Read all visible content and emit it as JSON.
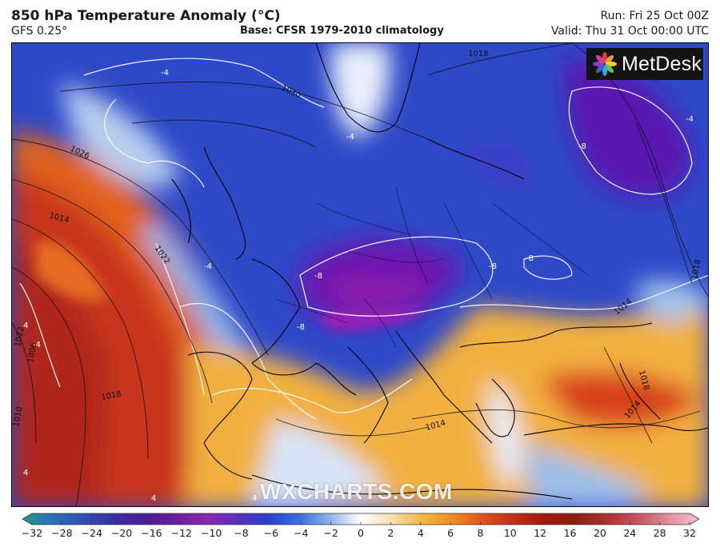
{
  "header": {
    "title": "850 hPa Temperature Anomaly (°C)",
    "model": "GFS 0.25°",
    "base": "Base: CFSR 1979-2010 climatology",
    "run": "Run: Fri 25 Oct 00Z",
    "valid": "Valid: Thu 31 Oct 00:00 UTC"
  },
  "branding": {
    "logo_text": "MetDesk",
    "watermark": "WXCHARTS.COM"
  },
  "map": {
    "isobar_labels": [
      "1018",
      "1026",
      "1030",
      "1014",
      "1022",
      "1010",
      "1006",
      "1018",
      "1014",
      "1018",
      "1018",
      "1014",
      "1014",
      "1022"
    ],
    "anomaly_labels": [
      "-4",
      "-4",
      "-4",
      "-8",
      "-8",
      "-8",
      "-8",
      "-8",
      "-4",
      "4",
      "4",
      "4",
      "4",
      "-4"
    ]
  },
  "colorbar": {
    "ticks": [
      "−32",
      "−28",
      "−24",
      "−20",
      "−16",
      "−12",
      "−10",
      "−8",
      "−6",
      "−4",
      "−2",
      "0",
      "2",
      "4",
      "6",
      "8",
      "10",
      "12",
      "16",
      "20",
      "24",
      "28",
      "32"
    ],
    "colors": [
      "#1e9a8e",
      "#2a6fb8",
      "#2f4fb5",
      "#3b2fa8",
      "#4a1f9a",
      "#6a1fa0",
      "#8a28b0",
      "#5a2fc0",
      "#2c3fd0",
      "#3a6ee0",
      "#8fb4ea",
      "#ffffff",
      "#f5deb0",
      "#f5b840",
      "#f08a20",
      "#e0501a",
      "#c62a14",
      "#a41810",
      "#8a2010",
      "#b03030",
      "#c85060",
      "#e090a0",
      "#f4c0d0"
    ]
  }
}
